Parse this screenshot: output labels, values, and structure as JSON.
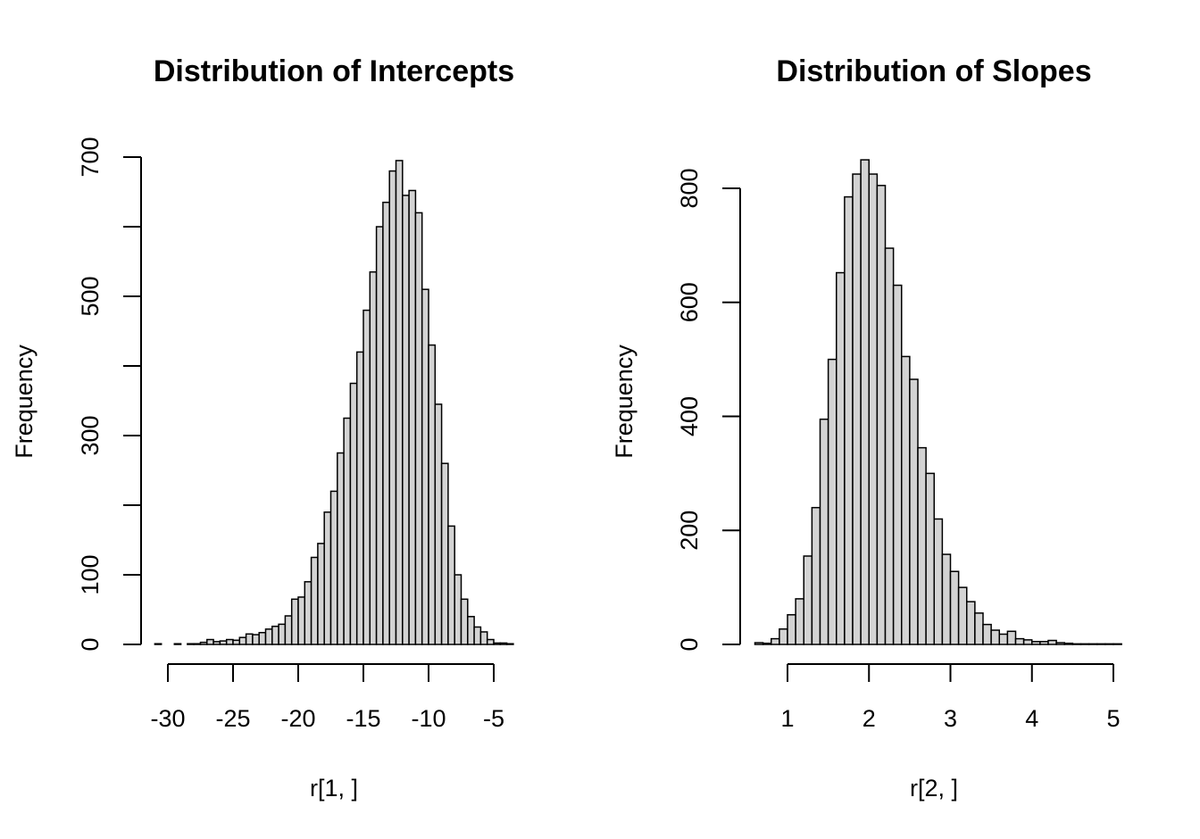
{
  "chart_data": [
    {
      "type": "bar",
      "title": "Distribution of Intercepts",
      "xlabel": "r[1, ]",
      "ylabel": "Frequency",
      "xlim": [
        -31,
        -3
      ],
      "ylim": [
        0,
        700
      ],
      "xticks": [
        -30,
        -25,
        -20,
        -15,
        -10,
        -5
      ],
      "yticks": [
        0,
        100,
        300,
        500,
        700
      ],
      "ytick_labels": [
        "0",
        "100",
        "300",
        "500",
        "700"
      ],
      "xtick_labels": [
        "-30",
        "-25",
        "-20",
        "-15",
        "-10",
        "-5"
      ],
      "bin_width": 0.5,
      "bins_start": -31,
      "values": [
        1,
        0,
        0,
        1,
        0,
        1,
        1,
        3,
        7,
        4,
        5,
        7,
        6,
        10,
        15,
        14,
        17,
        22,
        26,
        29,
        41,
        65,
        68,
        90,
        125,
        145,
        190,
        220,
        275,
        325,
        375,
        420,
        480,
        535,
        600,
        635,
        680,
        695,
        645,
        652,
        620,
        510,
        430,
        345,
        260,
        170,
        100,
        65,
        40,
        25,
        18,
        7,
        2,
        2,
        1,
        0
      ]
    },
    {
      "type": "bar",
      "title": "Distribution of Slopes",
      "xlabel": "r[2, ]",
      "ylabel": "Frequency",
      "xlim": [
        0.6,
        5
      ],
      "ylim": [
        0,
        800
      ],
      "xticks": [
        1,
        2,
        3,
        4,
        5
      ],
      "yticks": [
        0,
        200,
        400,
        600,
        800
      ],
      "ytick_labels": [
        "0",
        "200",
        "400",
        "600",
        "800"
      ],
      "xtick_labels": [
        "1",
        "2",
        "3",
        "4",
        "5"
      ],
      "bin_width": 0.1,
      "bins_start": 0.6,
      "values": [
        3,
        2,
        10,
        27,
        52,
        80,
        155,
        240,
        395,
        500,
        652,
        785,
        825,
        850,
        825,
        805,
        695,
        630,
        505,
        465,
        345,
        300,
        220,
        158,
        128,
        100,
        75,
        55,
        35,
        25,
        18,
        23,
        10,
        8,
        5,
        5,
        7,
        3,
        2,
        1,
        1,
        1,
        1,
        1,
        1
      ]
    }
  ]
}
